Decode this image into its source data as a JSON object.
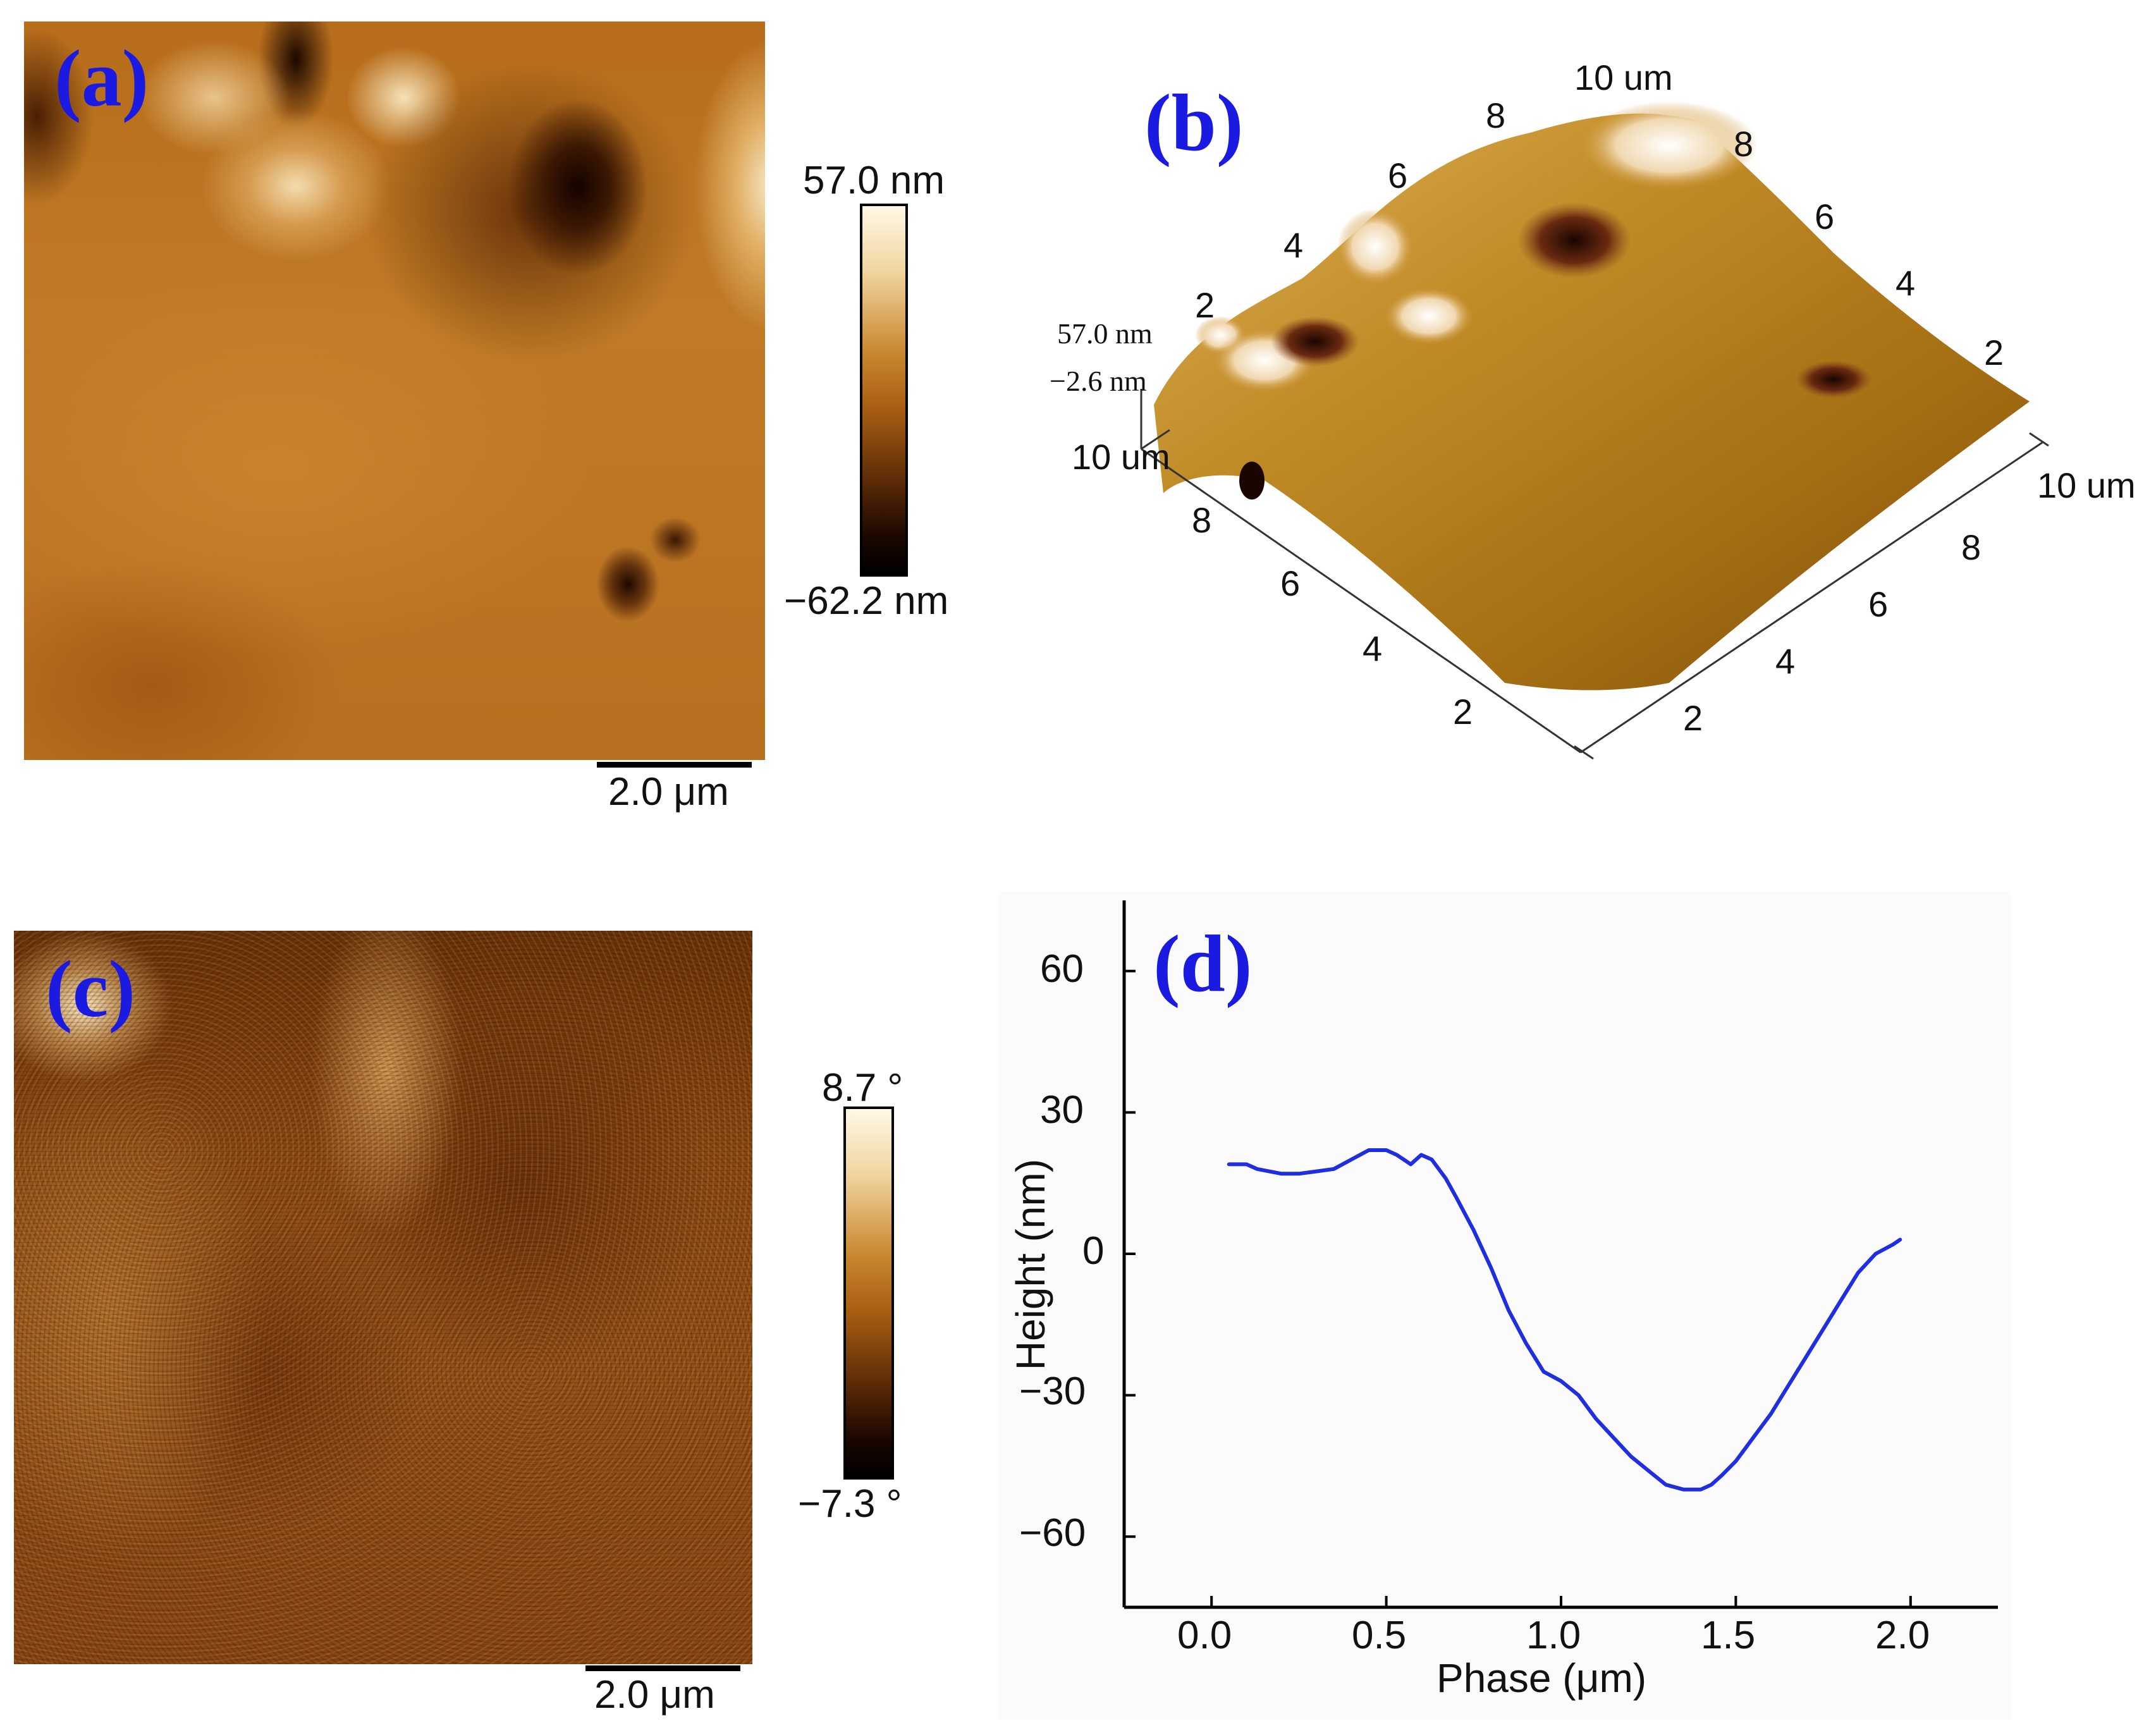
{
  "panels": {
    "a": {
      "label": "(a)",
      "colorbar_max": "57.0 nm",
      "colorbar_min": "−62.2 nm",
      "scale_bar": "2.0 μm"
    },
    "b": {
      "label": "(b)",
      "z_max": "57.0 nm",
      "z_min": "−2.6 nm",
      "top_axis_ticks": [
        "2",
        "4",
        "6",
        "8",
        "10 um"
      ],
      "right_axis_ticks": [
        "8",
        "6",
        "4",
        "2"
      ],
      "left_axis_ticks": [
        "10 um",
        "8",
        "6",
        "4",
        "2"
      ],
      "front_axis_ticks": [
        "2",
        "4",
        "6",
        "8",
        "10 um"
      ]
    },
    "c": {
      "label": "(c)",
      "colorbar_max": "8.7 °",
      "colorbar_min": "−7.3 °",
      "scale_bar": "2.0 μm"
    },
    "d": {
      "label": "(d)"
    }
  },
  "colors": {
    "label_blue": "#1a1ae0",
    "line_blue": "#1f2fe0",
    "afm_dark": "#1a0800",
    "afm_mid": "#b86a12",
    "afm_light": "#fff6e0"
  },
  "chart_data": {
    "type": "line",
    "title": "",
    "xlabel": "Phase (μm)",
    "ylabel": "Height (nm)",
    "xlim": [
      -0.25,
      2.25
    ],
    "ylim": [
      -75,
      75
    ],
    "xticks": [
      "0.0",
      "0.5",
      "1.0",
      "1.5",
      "2.0"
    ],
    "yticks": [
      "60",
      "30",
      "0",
      "−30",
      "−60"
    ],
    "grid": false,
    "series": [
      {
        "color": "#1f2fe0",
        "x": [
          0.05,
          0.1,
          0.13,
          0.2,
          0.25,
          0.3,
          0.35,
          0.4,
          0.45,
          0.5,
          0.53,
          0.57,
          0.6,
          0.63,
          0.67,
          0.7,
          0.75,
          0.8,
          0.85,
          0.9,
          0.95,
          1.0,
          1.05,
          1.1,
          1.15,
          1.2,
          1.25,
          1.3,
          1.35,
          1.4,
          1.43,
          1.46,
          1.5,
          1.55,
          1.6,
          1.65,
          1.7,
          1.75,
          1.8,
          1.85,
          1.9,
          1.95,
          1.97
        ],
        "y": [
          19,
          19,
          18,
          17,
          17,
          17.5,
          18,
          20,
          22,
          22,
          21,
          19,
          21,
          20,
          16,
          12,
          5,
          -3,
          -12,
          -19,
          -25,
          -27,
          -30,
          -35,
          -39,
          -43,
          -46,
          -49,
          -50,
          -50,
          -49,
          -47,
          -44,
          -39,
          -34,
          -28,
          -22,
          -16,
          -10,
          -4,
          0,
          2,
          3
        ]
      }
    ]
  }
}
